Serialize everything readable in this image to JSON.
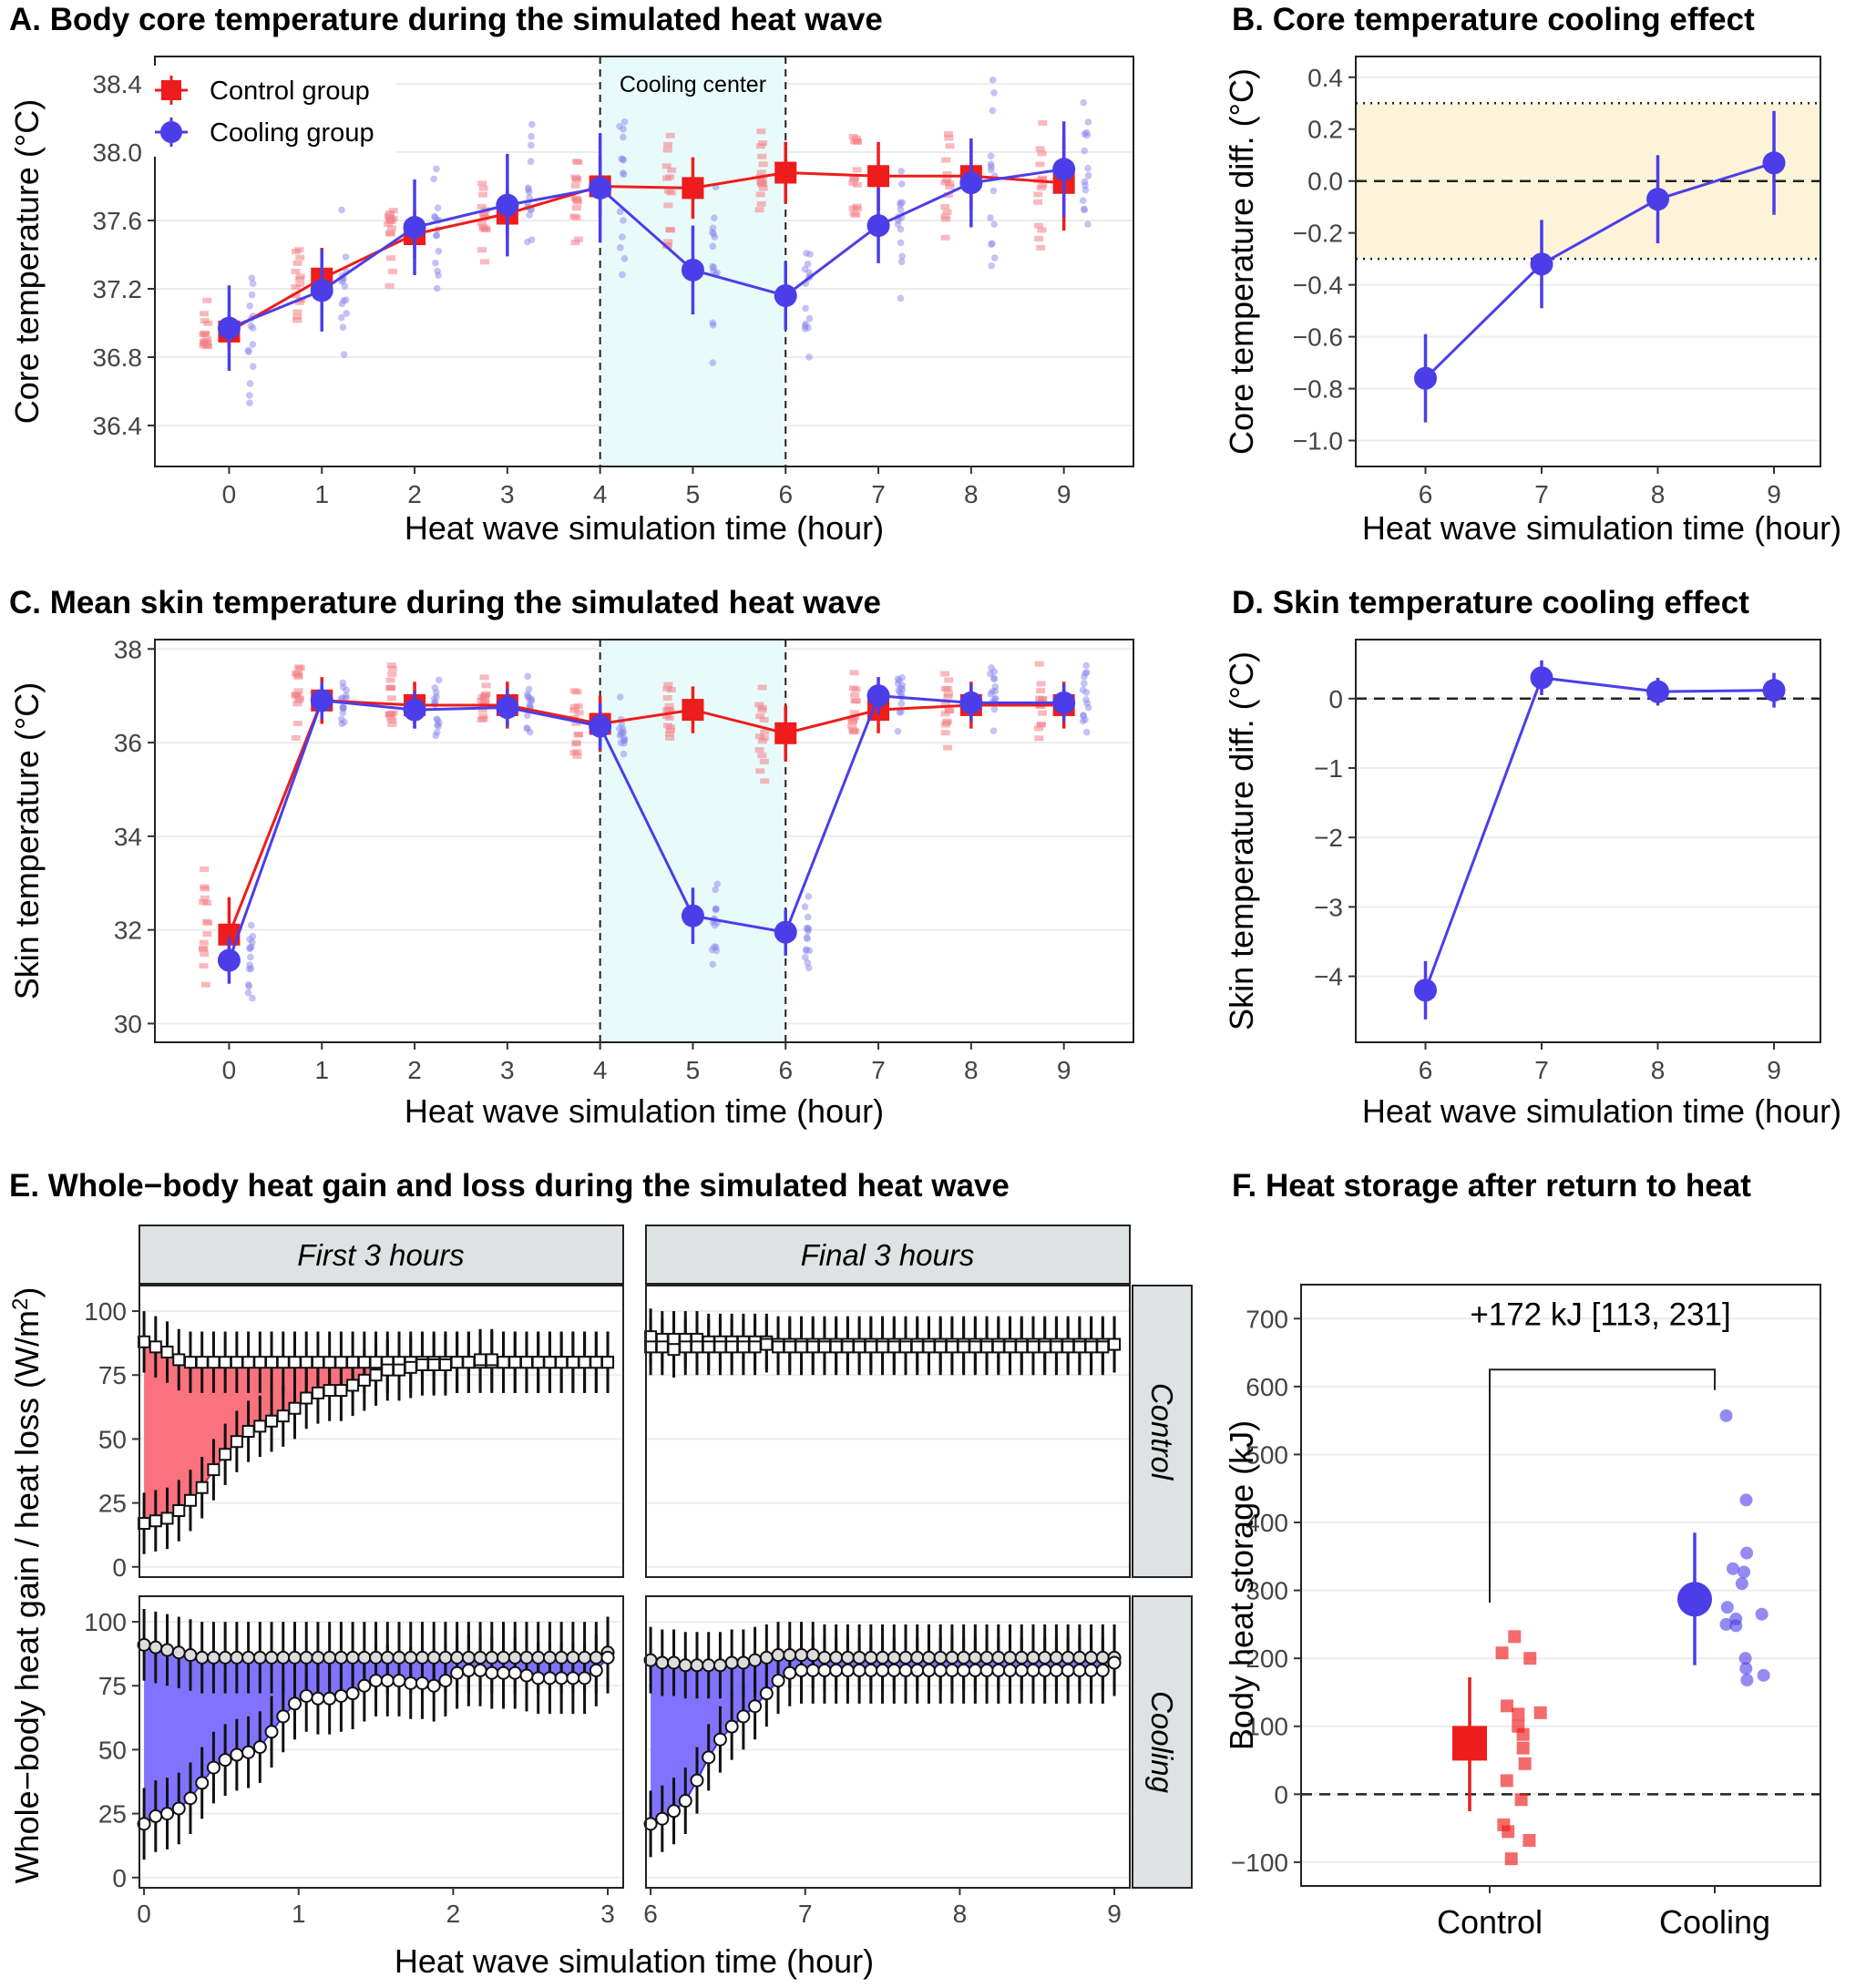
{
  "colors": {
    "control": "#ee1c1c",
    "cooling": "#4b3ee8",
    "control_light": "#f47f86",
    "cooling_light": "#8a86ee",
    "shade_cooling_center": "#e8fbfa",
    "shade_equivalence": "#fcf3d9",
    "strip_bg": "#dee2e2",
    "fill_control": "#fa6a77",
    "fill_cooling": "#7b6bff"
  },
  "chart_data": [
    {
      "id": "A",
      "type": "line",
      "title": "A. Body core temperature during the simulated heat wave",
      "xlabel": "Heat wave simulation time (hour)",
      "ylabel": "Core temperature (°C)",
      "xlim": [
        -0.8,
        9.75
      ],
      "ylim": [
        36.16,
        38.56
      ],
      "xticks": [
        0,
        1,
        2,
        3,
        4,
        5,
        6,
        7,
        8,
        9
      ],
      "yticks": [
        36.4,
        36.8,
        37.2,
        37.6,
        38.0,
        38.4
      ],
      "ytick_labels": [
        "36.4",
        "36.8",
        "37.2",
        "37.6",
        "38.0",
        "38.4"
      ],
      "shaded_region": {
        "x": [
          4,
          6
        ],
        "label": "Cooling center"
      },
      "legend": {
        "position": "top-left",
        "entries": [
          "Control group",
          "Cooling group"
        ]
      },
      "x": [
        0,
        1,
        2,
        3,
        4,
        5,
        6,
        7,
        8,
        9
      ],
      "series": [
        {
          "name": "Control group",
          "values": [
            36.95,
            37.26,
            37.52,
            37.64,
            37.8,
            37.79,
            37.88,
            37.86,
            37.86,
            37.82
          ],
          "errors": [
            0.1,
            0.18,
            0.14,
            0.14,
            0.18,
            0.18,
            0.18,
            0.2,
            0.2,
            0.28
          ]
        },
        {
          "name": "Cooling group",
          "values": [
            36.97,
            37.19,
            37.56,
            37.69,
            37.79,
            37.31,
            37.16,
            37.57,
            37.82,
            37.9
          ],
          "errors": [
            0.25,
            0.24,
            0.28,
            0.3,
            0.32,
            0.26,
            0.2,
            0.22,
            0.26,
            0.28
          ]
        }
      ]
    },
    {
      "id": "B",
      "type": "line",
      "title": "B. Core temperature cooling effect",
      "xlabel": "Heat wave simulation time (hour)",
      "ylabel": "Core temperature diff. (°C)",
      "xlim": [
        5.4,
        9.4
      ],
      "ylim": [
        -1.1,
        0.48
      ],
      "xticks": [
        6,
        7,
        8,
        9
      ],
      "yticks": [
        -1.0,
        -0.8,
        -0.6,
        -0.4,
        -0.2,
        0.0,
        0.2,
        0.4
      ],
      "ytick_labels": [
        "−1.0",
        "−0.8",
        "−0.6",
        "−0.4",
        "−0.2",
        "0.0",
        "0.2",
        "0.4"
      ],
      "equivalence_band": [
        -0.3,
        0.3
      ],
      "reference_line": 0,
      "x": [
        6,
        7,
        8,
        9
      ],
      "series": [
        {
          "name": "Cooling effect",
          "values": [
            -0.76,
            -0.32,
            -0.07,
            0.07
          ],
          "errors": [
            0.17,
            0.17,
            0.17,
            0.2
          ]
        }
      ]
    },
    {
      "id": "C",
      "type": "line",
      "title": "C. Mean skin temperature during the simulated heat wave",
      "xlabel": "Heat wave simulation time (hour)",
      "ylabel": "Skin temperature (°C)",
      "xlim": [
        -0.8,
        9.75
      ],
      "ylim": [
        29.6,
        38.2
      ],
      "xticks": [
        0,
        1,
        2,
        3,
        4,
        5,
        6,
        7,
        8,
        9
      ],
      "yticks": [
        30,
        32,
        34,
        36,
        38
      ],
      "ytick_labels": [
        "30",
        "32",
        "34",
        "36",
        "38"
      ],
      "shaded_region": {
        "x": [
          4,
          6
        ],
        "label": ""
      },
      "x": [
        0,
        1,
        2,
        3,
        4,
        5,
        6,
        7,
        8,
        9
      ],
      "series": [
        {
          "name": "Control group",
          "values": [
            31.9,
            36.9,
            36.8,
            36.8,
            36.4,
            36.7,
            36.2,
            36.7,
            36.8,
            36.8
          ],
          "errors": [
            0.8,
            0.5,
            0.5,
            0.5,
            0.6,
            0.5,
            0.6,
            0.5,
            0.5,
            0.5
          ]
        },
        {
          "name": "Cooling group",
          "values": [
            31.35,
            36.9,
            36.7,
            36.75,
            36.35,
            32.3,
            31.95,
            37.0,
            36.85,
            36.85
          ],
          "errors": [
            0.5,
            0.4,
            0.4,
            0.4,
            0.5,
            0.6,
            0.5,
            0.4,
            0.4,
            0.4
          ]
        }
      ]
    },
    {
      "id": "D",
      "type": "line",
      "title": "D. Skin temperature cooling effect",
      "xlabel": "Heat wave simulation time (hour)",
      "ylabel": "Skin temperature diff. (°C)",
      "xlim": [
        5.4,
        9.4
      ],
      "ylim": [
        -4.95,
        0.85
      ],
      "xticks": [
        6,
        7,
        8,
        9
      ],
      "yticks": [
        -4,
        -3,
        -2,
        -1,
        0
      ],
      "ytick_labels": [
        "−4",
        "−3",
        "−2",
        "−1",
        "0"
      ],
      "reference_line": 0,
      "x": [
        6,
        7,
        8,
        9
      ],
      "series": [
        {
          "name": "Cooling effect",
          "values": [
            -4.2,
            0.3,
            0.1,
            0.12
          ],
          "errors": [
            0.42,
            0.25,
            0.2,
            0.25
          ]
        }
      ]
    },
    {
      "id": "E",
      "type": "area",
      "title": "E. Whole−body heat gain and loss during the simulated heat wave",
      "xlabel": "Heat wave simulation time (hour)",
      "ylabel": "Whole−body heat gain / heat loss (W/m",
      "ylabel_superscript": "2",
      "ylabel_suffix": ")",
      "columns": [
        "First 3 hours",
        "Final 3 hours"
      ],
      "rows": [
        "Control",
        "Cooling"
      ],
      "ylim": [
        -4,
        110
      ],
      "yticks": [
        0,
        25,
        50,
        75,
        100
      ],
      "ytick_labels": [
        "0",
        "25",
        "50",
        "75",
        "100"
      ],
      "xticks_first": [
        0,
        1,
        2,
        3
      ],
      "xticks_final": [
        6,
        7,
        8,
        9
      ],
      "series": [
        {
          "row": "Control",
          "column": "First 3 hours",
          "x": [
            0,
            0.075,
            0.15,
            0.225,
            0.3,
            0.375,
            0.45,
            0.525,
            0.6,
            0.675,
            0.75,
            0.825,
            0.9,
            0.975,
            1.05,
            1.125,
            1.2,
            1.275,
            1.35,
            1.425,
            1.5,
            1.575,
            1.65,
            1.725,
            1.8,
            1.875,
            1.95,
            2.025,
            2.1,
            2.175,
            2.25,
            2.325,
            2.4,
            2.475,
            2.55,
            2.625,
            2.7,
            2.775,
            2.85,
            2.925,
            3.0
          ],
          "heat_gain": [
            88,
            86,
            84,
            81,
            80,
            80,
            80,
            80,
            80,
            80,
            80,
            80,
            80,
            80,
            80,
            80,
            80,
            80,
            80,
            80,
            80,
            80,
            80,
            80,
            80,
            80,
            80,
            80,
            80,
            80,
            80,
            80,
            80,
            80,
            80,
            80,
            80,
            80,
            80,
            80,
            80
          ],
          "heat_loss": [
            17,
            18,
            19,
            22,
            26,
            31,
            38,
            44,
            49,
            53,
            55,
            57,
            59,
            62,
            66,
            68,
            69,
            69,
            71,
            73,
            75,
            77,
            77,
            78,
            79,
            79,
            79,
            80,
            80,
            81,
            81,
            80,
            80,
            80,
            80,
            80,
            80,
            80,
            80,
            80,
            80
          ],
          "error": 12
        },
        {
          "row": "Control",
          "column": "Final 3 hours",
          "x": [
            6.0,
            6.075,
            6.15,
            6.225,
            6.3,
            6.375,
            6.45,
            6.525,
            6.6,
            6.675,
            6.75,
            6.825,
            6.9,
            6.975,
            7.05,
            7.125,
            7.2,
            7.275,
            7.35,
            7.425,
            7.5,
            7.575,
            7.65,
            7.725,
            7.8,
            7.875,
            7.95,
            8.025,
            8.1,
            8.175,
            8.25,
            8.325,
            8.4,
            8.475,
            8.55,
            8.625,
            8.7,
            8.775,
            8.85,
            8.925,
            9.0
          ],
          "heat_gain": [
            90,
            89,
            89,
            89,
            89,
            88,
            88,
            88,
            88,
            88,
            88,
            87,
            87,
            87,
            87,
            87,
            87,
            87,
            87,
            87,
            87,
            87,
            87,
            87,
            87,
            87,
            87,
            87,
            87,
            87,
            87,
            87,
            87,
            87,
            87,
            87,
            87,
            87,
            87,
            87,
            87
          ],
          "heat_loss": [
            86,
            86,
            85,
            86,
            86,
            86,
            86,
            86,
            86,
            86,
            87,
            86,
            86,
            86,
            86,
            86,
            86,
            86,
            86,
            86,
            86,
            86,
            86,
            86,
            86,
            86,
            86,
            86,
            86,
            86,
            86,
            86,
            86,
            86,
            86,
            86,
            86,
            86,
            86,
            86,
            87
          ],
          "error": 11
        },
        {
          "row": "Cooling",
          "column": "First 3 hours",
          "x": [
            0,
            0.075,
            0.15,
            0.225,
            0.3,
            0.375,
            0.45,
            0.525,
            0.6,
            0.675,
            0.75,
            0.825,
            0.9,
            0.975,
            1.05,
            1.125,
            1.2,
            1.275,
            1.35,
            1.425,
            1.5,
            1.575,
            1.65,
            1.725,
            1.8,
            1.875,
            1.95,
            2.025,
            2.1,
            2.175,
            2.25,
            2.325,
            2.4,
            2.475,
            2.55,
            2.625,
            2.7,
            2.775,
            2.85,
            2.925,
            3.0
          ],
          "heat_gain": [
            91,
            90,
            89,
            88,
            87,
            86,
            86,
            86,
            86,
            86,
            86,
            86,
            86,
            86,
            86,
            86,
            86,
            86,
            86,
            86,
            86,
            86,
            86,
            86,
            86,
            86,
            86,
            86,
            86,
            86,
            86,
            86,
            86,
            86,
            86,
            86,
            86,
            86,
            86,
            86,
            88
          ],
          "heat_loss": [
            21,
            24,
            25,
            27,
            31,
            37,
            43,
            46,
            48,
            49,
            51,
            57,
            63,
            68,
            71,
            70,
            70,
            71,
            72,
            75,
            77,
            77,
            77,
            76,
            76,
            75,
            77,
            80,
            81,
            81,
            80,
            80,
            80,
            79,
            78,
            78,
            78,
            78,
            78,
            81,
            86
          ],
          "error": 14
        },
        {
          "row": "Cooling",
          "column": "Final 3 hours",
          "x": [
            6.0,
            6.075,
            6.15,
            6.225,
            6.3,
            6.375,
            6.45,
            6.525,
            6.6,
            6.675,
            6.75,
            6.825,
            6.9,
            6.975,
            7.05,
            7.125,
            7.2,
            7.275,
            7.35,
            7.425,
            7.5,
            7.575,
            7.65,
            7.725,
            7.8,
            7.875,
            7.95,
            8.025,
            8.1,
            8.175,
            8.25,
            8.325,
            8.4,
            8.475,
            8.55,
            8.625,
            8.7,
            8.775,
            8.85,
            8.925,
            9.0
          ],
          "heat_gain": [
            85,
            84,
            84,
            83,
            83,
            83,
            83,
            84,
            84,
            85,
            86,
            87,
            87,
            87,
            87,
            86,
            86,
            86,
            86,
            86,
            86,
            86,
            86,
            86,
            86,
            86,
            86,
            86,
            86,
            86,
            86,
            86,
            86,
            86,
            86,
            86,
            86,
            86,
            86,
            86,
            86
          ],
          "heat_loss": [
            21,
            23,
            26,
            30,
            38,
            47,
            54,
            59,
            63,
            67,
            72,
            77,
            80,
            81,
            81,
            81,
            81,
            81,
            81,
            81,
            81,
            81,
            81,
            81,
            81,
            81,
            81,
            81,
            81,
            81,
            81,
            81,
            81,
            81,
            81,
            81,
            81,
            81,
            81,
            81,
            84
          ],
          "error": 13
        }
      ]
    },
    {
      "id": "F",
      "type": "scatter",
      "title": "F. Heat storage after return to heat",
      "xlabel": "",
      "ylabel": "Body heat storage (kJ)",
      "categories": [
        "Control",
        "Cooling"
      ],
      "ylim": [
        -135,
        750
      ],
      "yticks": [
        -100,
        0,
        100,
        200,
        300,
        400,
        500,
        600,
        700
      ],
      "ytick_labels": [
        "−100",
        "0",
        "100",
        "200",
        "300",
        "400",
        "500",
        "600",
        "700"
      ],
      "reference_line": 0,
      "annotation": "+172 kJ [113, 231]",
      "means": [
        {
          "group": "Control",
          "value": 75,
          "ci": [
            -25,
            172
          ]
        },
        {
          "group": "Cooling",
          "value": 287,
          "ci": [
            190,
            385
          ]
        }
      ],
      "points": {
        "Control": [
          232,
          208,
          200,
          130,
          120,
          118,
          100,
          88,
          68,
          45,
          20,
          -8,
          -45,
          -55,
          -68,
          -95
        ],
        "Cooling": [
          557,
          433,
          355,
          332,
          327,
          310,
          275,
          265,
          258,
          250,
          248,
          200,
          185,
          175,
          168
        ]
      }
    }
  ]
}
